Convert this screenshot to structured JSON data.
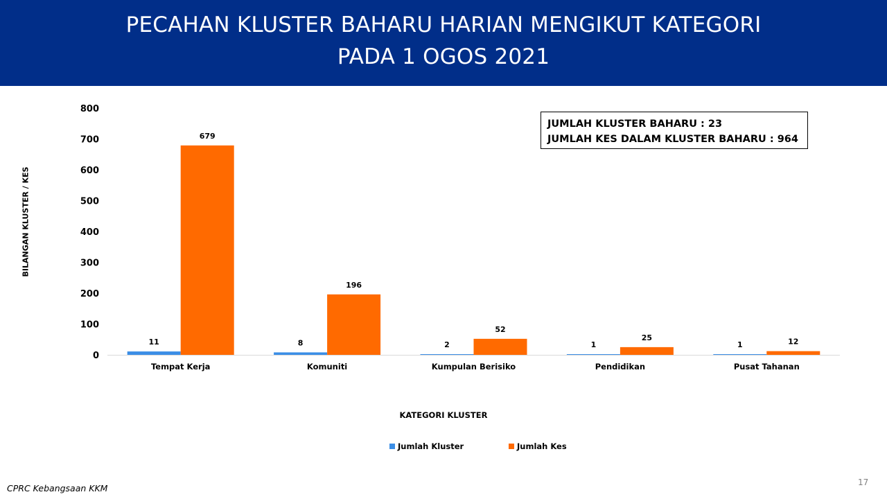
{
  "slide": {
    "title_line1": "PECAHAN KLUSTER BAHARU HARIAN MENGIKUT KATEGORI",
    "title_line2": "PADA 1 OGOS 2021",
    "banner_color": "#012e89",
    "summary_line1": "JUMLAH KLUSTER BAHARU : 23",
    "summary_line2": "JUMLAH KES DALAM KLUSTER BAHARU : 964",
    "footer": "CPRC Kebangsaan KKM",
    "page_number": "17"
  },
  "chart_data": {
    "type": "bar",
    "categories": [
      "Tempat Kerja",
      "Komuniti",
      "Kumpulan Berisiko",
      "Pendidikan",
      "Pusat Tahanan"
    ],
    "series": [
      {
        "name": "Jumlah Kluster",
        "values": [
          11,
          8,
          2,
          1,
          1
        ],
        "color": "#3b8ee6"
      },
      {
        "name": "Jumlah Kes",
        "values": [
          679,
          196,
          52,
          25,
          12
        ],
        "color": "#ff6a00"
      }
    ],
    "title": "",
    "xlabel": "KATEGORI KLUSTER",
    "ylabel": "BILANGAN KLUSTER / KES",
    "ylim": [
      0,
      800
    ],
    "yticks": [
      0,
      100,
      200,
      300,
      400,
      500,
      600,
      700,
      800
    ],
    "grid": false,
    "legend_position": "bottom"
  }
}
